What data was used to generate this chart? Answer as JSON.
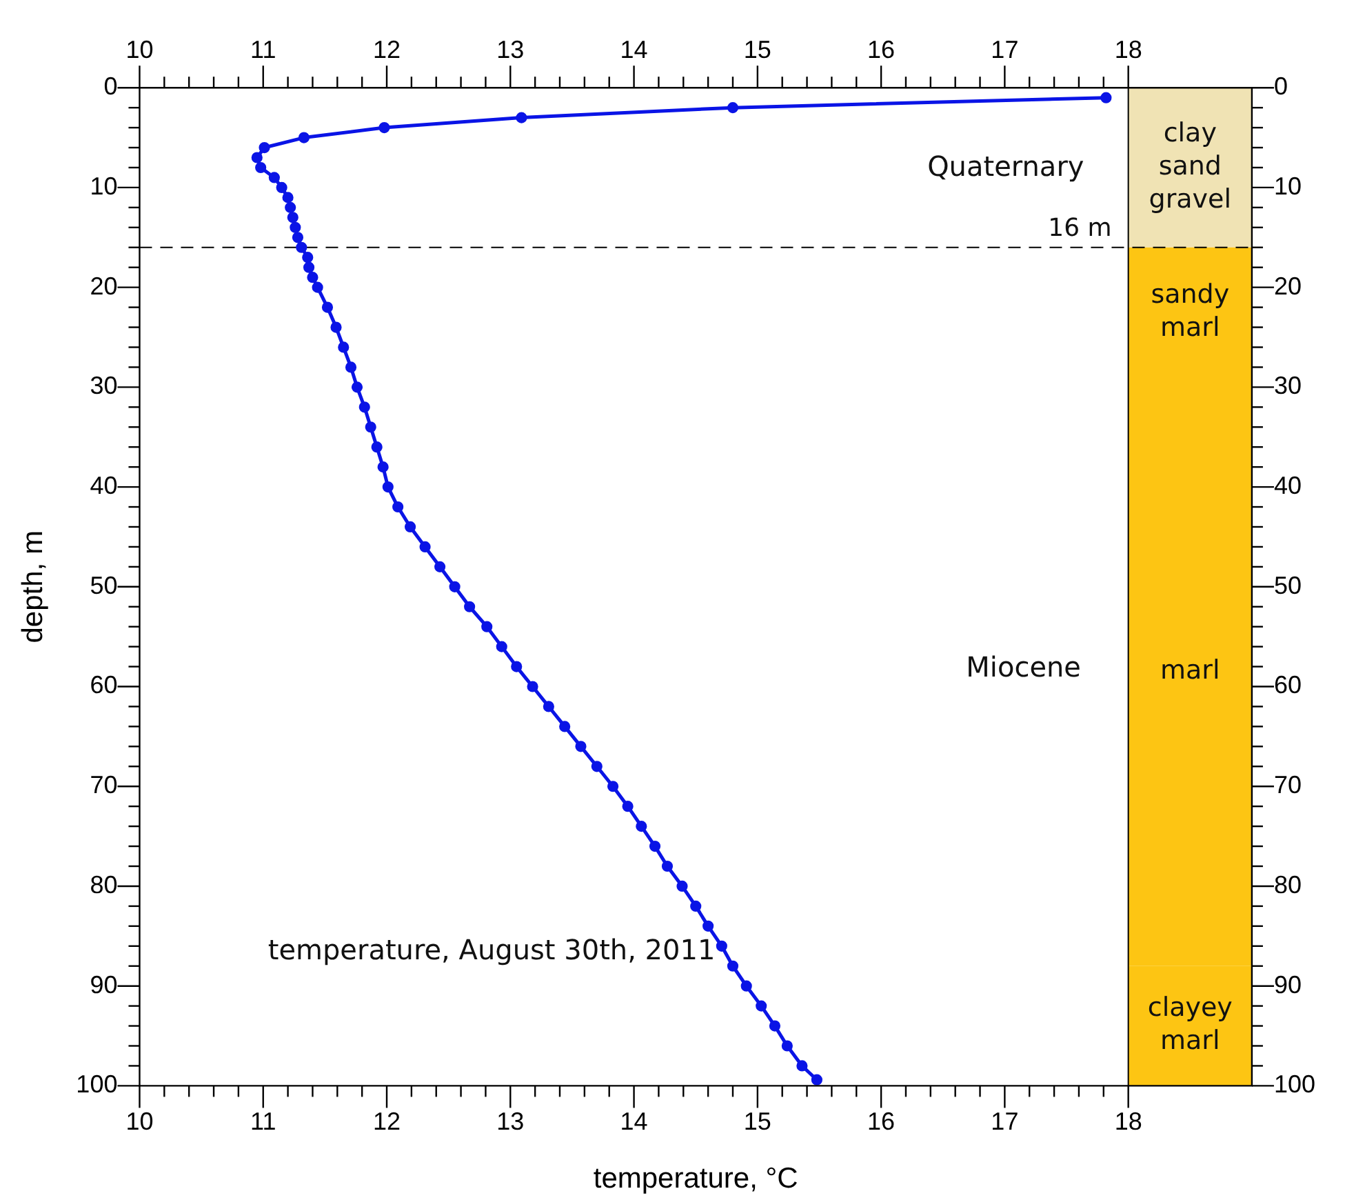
{
  "chart_data": {
    "type": "line",
    "xlabel": "temperature, °C",
    "ylabel": "depth, m",
    "xlim": [
      10,
      19
    ],
    "xticks": [
      10,
      {
        "value": 10.2,
        "label": null
      },
      {
        "value": 10.4,
        "label": null
      },
      {
        "value": 10.6,
        "label": null
      },
      {
        "value": 10.8,
        "label": null
      },
      11,
      {
        "value": 11.2,
        "label": null
      },
      {
        "value": 11.4,
        "label": null
      },
      {
        "value": 11.6,
        "label": null
      },
      {
        "value": 11.8,
        "label": null
      },
      12,
      {
        "value": 12.2,
        "label": null
      },
      {
        "value": 12.4,
        "label": null
      },
      {
        "value": 12.6,
        "label": null
      },
      {
        "value": 12.8,
        "label": null
      },
      13,
      {
        "value": 13.2,
        "label": null
      },
      {
        "value": 13.4,
        "label": null
      },
      {
        "value": 13.6,
        "label": null
      },
      {
        "value": 13.8,
        "label": null
      },
      14,
      {
        "value": 14.2,
        "label": null
      },
      {
        "value": 14.4,
        "label": null
      },
      {
        "value": 14.6,
        "label": null
      },
      {
        "value": 14.8,
        "label": null
      },
      15,
      {
        "value": 15.2,
        "label": null
      },
      {
        "value": 15.4,
        "label": null
      },
      {
        "value": 15.6,
        "label": null
      },
      {
        "value": 15.8,
        "label": null
      },
      16,
      {
        "value": 16.2,
        "label": null
      },
      {
        "value": 16.4,
        "label": null
      },
      {
        "value": 16.6,
        "label": null
      },
      {
        "value": 16.8,
        "label": null
      },
      17,
      {
        "value": 17.2,
        "label": null
      },
      {
        "value": 17.4,
        "label": null
      },
      {
        "value": 17.6,
        "label": null
      },
      {
        "value": 17.8,
        "label": null
      },
      18
    ],
    "x2lim": [
      10,
      19
    ],
    "x2ticks": [
      10,
      {
        "value": 10.2,
        "label": null
      },
      {
        "value": 10.4,
        "label": null
      },
      {
        "value": 10.6,
        "label": null
      },
      {
        "value": 10.8,
        "label": null
      },
      11,
      {
        "value": 11.2,
        "label": null
      },
      {
        "value": 11.4,
        "label": null
      },
      {
        "value": 11.6,
        "label": null
      },
      {
        "value": 11.8,
        "label": null
      },
      12,
      {
        "value": 12.2,
        "label": null
      },
      {
        "value": 12.4,
        "label": null
      },
      {
        "value": 12.6,
        "label": null
      },
      {
        "value": 12.8,
        "label": null
      },
      13,
      {
        "value": 13.2,
        "label": null
      },
      {
        "value": 13.4,
        "label": null
      },
      {
        "value": 13.6,
        "label": null
      },
      {
        "value": 13.8,
        "label": null
      },
      14,
      {
        "value": 14.2,
        "label": null
      },
      {
        "value": 14.4,
        "label": null
      },
      {
        "value": 14.6,
        "label": null
      },
      {
        "value": 14.8,
        "label": null
      },
      15,
      {
        "value": 15.2,
        "label": null
      },
      {
        "value": 15.4,
        "label": null
      },
      {
        "value": 15.6,
        "label": null
      },
      {
        "value": 15.8,
        "label": null
      },
      16,
      {
        "value": 16.2,
        "label": null
      },
      {
        "value": 16.4,
        "label": null
      },
      {
        "value": 16.6,
        "label": null
      },
      {
        "value": 16.8,
        "label": null
      },
      17,
      {
        "value": 17.2,
        "label": null
      },
      {
        "value": 17.4,
        "label": null
      },
      {
        "value": 17.6,
        "label": null
      },
      {
        "value": 17.8,
        "label": null
      },
      18
    ],
    "ylim": [
      100,
      0
    ],
    "yticks": [
      0,
      {
        "value": 2,
        "label": null
      },
      {
        "value": 4,
        "label": null
      },
      {
        "value": 6,
        "label": null
      },
      {
        "value": 8,
        "label": null
      },
      10,
      {
        "value": 12,
        "label": null
      },
      {
        "value": 14,
        "label": null
      },
      {
        "value": 16,
        "label": null
      },
      {
        "value": 18,
        "label": null
      },
      20,
      {
        "value": 22,
        "label": null
      },
      {
        "value": 24,
        "label": null
      },
      {
        "value": 26,
        "label": null
      },
      {
        "value": 28,
        "label": null
      },
      30,
      {
        "value": 32,
        "label": null
      },
      {
        "value": 34,
        "label": null
      },
      {
        "value": 36,
        "label": null
      },
      {
        "value": 38,
        "label": null
      },
      40,
      {
        "value": 42,
        "label": null
      },
      {
        "value": 44,
        "label": null
      },
      {
        "value": 46,
        "label": null
      },
      {
        "value": 48,
        "label": null
      },
      50,
      {
        "value": 52,
        "label": null
      },
      {
        "value": 54,
        "label": null
      },
      {
        "value": 56,
        "label": null
      },
      {
        "value": 58,
        "label": null
      },
      60,
      {
        "value": 62,
        "label": null
      },
      {
        "value": 64,
        "label": null
      },
      {
        "value": 66,
        "label": null
      },
      {
        "value": 68,
        "label": null
      },
      70,
      {
        "value": 72,
        "label": null
      },
      {
        "value": 74,
        "label": null
      },
      {
        "value": 76,
        "label": null
      },
      {
        "value": 78,
        "label": null
      },
      80,
      {
        "value": 82,
        "label": null
      },
      {
        "value": 84,
        "label": null
      },
      {
        "value": 86,
        "label": null
      },
      {
        "value": 88,
        "label": null
      },
      90,
      {
        "value": 92,
        "label": null
      },
      {
        "value": 94,
        "label": null
      },
      {
        "value": 96,
        "label": null
      },
      {
        "value": 98,
        "label": null
      },
      100
    ],
    "y2lim": [
      100,
      0
    ],
    "y2ticks": [
      0,
      {
        "value": 2,
        "label": null
      },
      {
        "value": 4,
        "label": null
      },
      {
        "value": 6,
        "label": null
      },
      {
        "value": 8,
        "label": null
      },
      10,
      {
        "value": 12,
        "label": null
      },
      {
        "value": 14,
        "label": null
      },
      {
        "value": 16,
        "label": null
      },
      {
        "value": 18,
        "label": null
      },
      20,
      {
        "value": 22,
        "label": null
      },
      {
        "value": 24,
        "label": null
      },
      {
        "value": 26,
        "label": null
      },
      {
        "value": 28,
        "label": null
      },
      30,
      {
        "value": 32,
        "label": null
      },
      {
        "value": 34,
        "label": null
      },
      {
        "value": 36,
        "label": null
      },
      {
        "value": 38,
        "label": null
      },
      40,
      {
        "value": 42,
        "label": null
      },
      {
        "value": 44,
        "label": null
      },
      {
        "value": 46,
        "label": null
      },
      {
        "value": 48,
        "label": null
      },
      50,
      {
        "value": 52,
        "label": null
      },
      {
        "value": 54,
        "label": null
      },
      {
        "value": 56,
        "label": null
      },
      {
        "value": 58,
        "label": null
      },
      60,
      {
        "value": 62,
        "label": null
      },
      {
        "value": 64,
        "label": null
      },
      {
        "value": 66,
        "label": null
      },
      {
        "value": 68,
        "label": null
      },
      70,
      {
        "value": 72,
        "label": null
      },
      {
        "value": 74,
        "label": null
      },
      {
        "value": 76,
        "label": null
      },
      {
        "value": 78,
        "label": null
      },
      80,
      {
        "value": 82,
        "label": null
      },
      {
        "value": 84,
        "label": null
      },
      {
        "value": 86,
        "label": null
      },
      {
        "value": 88,
        "label": null
      },
      90,
      {
        "value": 92,
        "label": null
      },
      {
        "value": 94,
        "label": null
      },
      {
        "value": 96,
        "label": null
      },
      {
        "value": 98,
        "label": null
      },
      100
    ],
    "series": [
      {
        "color": "#0a14e6",
        "x": [
          17.82,
          14.8,
          13.09,
          11.98,
          11.33,
          11.01,
          10.95,
          10.98,
          11.09,
          11.15,
          11.2,
          11.22,
          11.24,
          11.26,
          11.28,
          11.31,
          11.36,
          11.37,
          11.4,
          11.44,
          11.52,
          11.59,
          11.65,
          11.71,
          11.76,
          11.82,
          11.87,
          11.92,
          11.97,
          12.01,
          12.09,
          12.19,
          12.31,
          12.43,
          12.55,
          12.67,
          12.81,
          12.93,
          13.05,
          13.18,
          13.31,
          13.44,
          13.57,
          13.7,
          13.83,
          13.95,
          14.06,
          14.17,
          14.27,
          14.39,
          14.5,
          14.6,
          14.71,
          14.8,
          14.91,
          15.03,
          15.14,
          15.24,
          15.36,
          15.48
        ],
        "values": [
          1,
          2,
          3,
          4,
          5,
          6,
          7,
          8,
          9,
          10,
          11,
          12,
          13,
          14,
          15,
          16,
          17,
          18,
          19,
          20,
          22,
          24,
          26,
          28,
          30,
          32,
          34,
          36,
          38,
          40,
          42,
          44,
          46,
          48,
          50,
          52,
          54,
          56,
          58,
          60,
          62,
          64,
          66,
          68,
          70,
          72,
          74,
          76,
          78,
          80,
          82,
          84,
          86,
          88,
          90,
          92,
          94,
          96,
          98,
          99.4
        ]
      }
    ],
    "marker": "circle",
    "line_style": "solid",
    "grid": false,
    "legend": false,
    "ref_lines": [
      {
        "axis": "y",
        "value": 16,
        "label": "16 m",
        "line_style": "dashed",
        "color": "#000000"
      },
      {
        "axis": "x",
        "value": 18,
        "line_style": "solid",
        "color": "#000000"
      }
    ],
    "bands": [
      {
        "axis": "y",
        "from": 0,
        "to": 16,
        "label": "clay sand gravel",
        "color": "#f0e3b4"
      },
      {
        "axis": "y",
        "from": 16,
        "to": 29,
        "label": "sandy marl",
        "color": "#fdc513"
      },
      {
        "axis": "y",
        "from": 29,
        "to": 88,
        "label": "marl",
        "color": "#fdc513"
      },
      {
        "axis": "y",
        "from": 88,
        "to": 100,
        "label": "clayey marl",
        "color": "#fdc513"
      }
    ],
    "annotations": [
      "Quaternary",
      "Miocene",
      "temperature, August 30th, 2011"
    ]
  }
}
